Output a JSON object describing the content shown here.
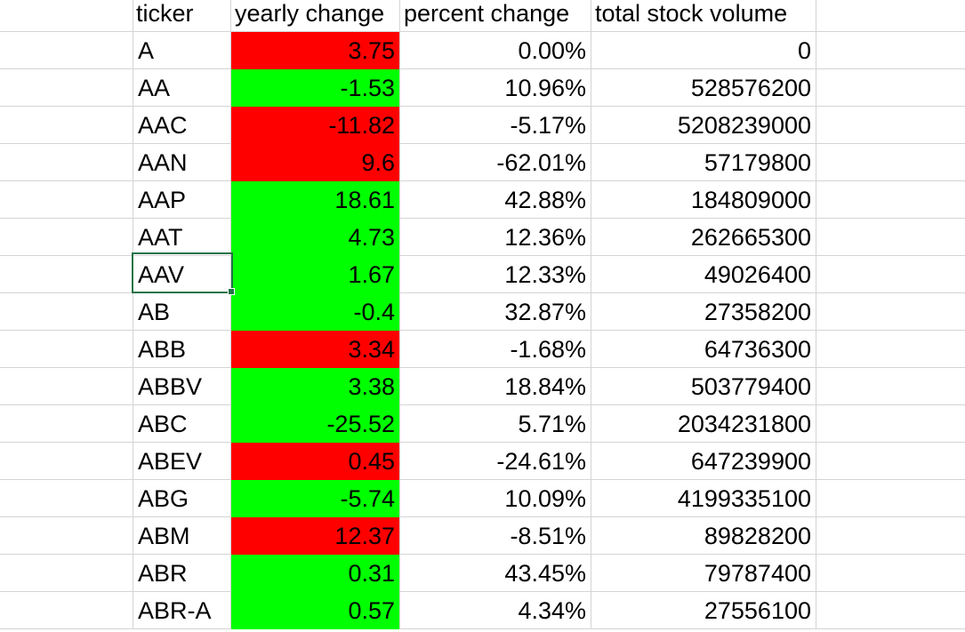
{
  "headers": {
    "ticker": "ticker",
    "yearly_change": "yearly change",
    "percent_change": "percent change",
    "total_volume": "total stock volume"
  },
  "colors": {
    "positive_fill": "#00ff00",
    "negative_fill": "#ff0000",
    "gridline": "#d4d4d4",
    "selection": "#217346"
  },
  "selected_cell": "AAV",
  "rows": [
    {
      "ticker": "A",
      "yearly_change": "3.75",
      "fill": "red",
      "percent_change": "0.00%",
      "volume": "0"
    },
    {
      "ticker": "AA",
      "yearly_change": "-1.53",
      "fill": "green",
      "percent_change": "10.96%",
      "volume": "528576200"
    },
    {
      "ticker": "AAC",
      "yearly_change": "-11.82",
      "fill": "red",
      "percent_change": "-5.17%",
      "volume": "5208239000"
    },
    {
      "ticker": "AAN",
      "yearly_change": "9.6",
      "fill": "red",
      "percent_change": "-62.01%",
      "volume": "57179800"
    },
    {
      "ticker": "AAP",
      "yearly_change": "18.61",
      "fill": "green",
      "percent_change": "42.88%",
      "volume": "184809000"
    },
    {
      "ticker": "AAT",
      "yearly_change": "4.73",
      "fill": "green",
      "percent_change": "12.36%",
      "volume": "262665300"
    },
    {
      "ticker": "AAV",
      "yearly_change": "1.67",
      "fill": "green",
      "percent_change": "12.33%",
      "volume": "49026400"
    },
    {
      "ticker": "AB",
      "yearly_change": "-0.4",
      "fill": "green",
      "percent_change": "32.87%",
      "volume": "27358200"
    },
    {
      "ticker": "ABB",
      "yearly_change": "3.34",
      "fill": "red",
      "percent_change": "-1.68%",
      "volume": "64736300"
    },
    {
      "ticker": "ABBV",
      "yearly_change": "3.38",
      "fill": "green",
      "percent_change": "18.84%",
      "volume": "503779400"
    },
    {
      "ticker": "ABC",
      "yearly_change": "-25.52",
      "fill": "green",
      "percent_change": "5.71%",
      "volume": "2034231800"
    },
    {
      "ticker": "ABEV",
      "yearly_change": "0.45",
      "fill": "red",
      "percent_change": "-24.61%",
      "volume": "647239900"
    },
    {
      "ticker": "ABG",
      "yearly_change": "-5.74",
      "fill": "green",
      "percent_change": "10.09%",
      "volume": "4199335100"
    },
    {
      "ticker": "ABM",
      "yearly_change": "12.37",
      "fill": "red",
      "percent_change": "-8.51%",
      "volume": "89828200"
    },
    {
      "ticker": "ABR",
      "yearly_change": "0.31",
      "fill": "green",
      "percent_change": "43.45%",
      "volume": "79787400"
    },
    {
      "ticker": "ABR-A",
      "yearly_change": "0.57",
      "fill": "green",
      "percent_change": "4.34%",
      "volume": "27556100"
    }
  ]
}
